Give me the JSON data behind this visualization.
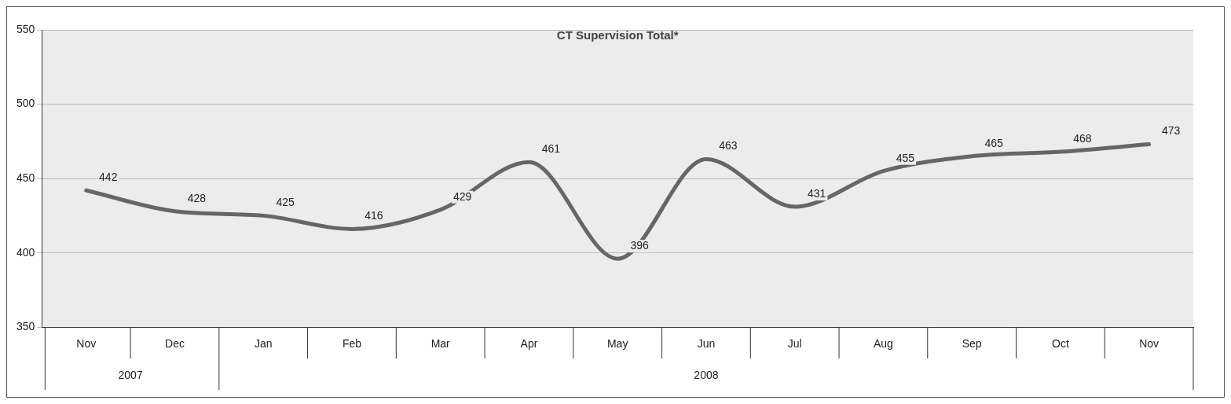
{
  "chart_data": {
    "type": "line",
    "title": "CT Supervision Total*",
    "categories": [
      "Nov",
      "Dec",
      "Jan",
      "Feb",
      "Mar",
      "Apr",
      "May",
      "Jun",
      "Jul",
      "Aug",
      "Sep",
      "Oct",
      "Nov"
    ],
    "annotations": [
      "2007",
      "2008"
    ],
    "series": [
      {
        "color": "#666666",
        "values": [
          442,
          428,
          425,
          416,
          429,
          461,
          396,
          463,
          431,
          455,
          465,
          468,
          473
        ]
      }
    ],
    "ylim": [
      350,
      550
    ],
    "yticks": [
      350,
      400,
      450,
      500,
      550
    ],
    "grid": "y",
    "data_labels": true,
    "legend": false,
    "marker": "none",
    "line_style": "solid"
  }
}
